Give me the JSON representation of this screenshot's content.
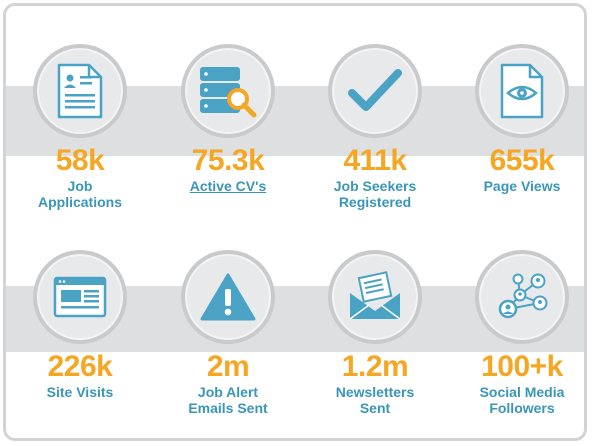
{
  "colors": {
    "accent_orange": "#f5a623",
    "label_blue": "#3a96b8",
    "icon_blue": "#4aa3c4",
    "band_gray": "#dedfe1"
  },
  "stats": [
    {
      "value": "58k",
      "label_lines": [
        "Job",
        "Applications"
      ],
      "icon": "document-icon"
    },
    {
      "value": "75.3k",
      "label_lines": [
        "Active CV's"
      ],
      "icon": "database-search-icon",
      "link": true
    },
    {
      "value": "411k",
      "label_lines": [
        "Job Seekers",
        "Registered"
      ],
      "icon": "checkmark-icon"
    },
    {
      "value": "655k",
      "label_lines": [
        "Page Views"
      ],
      "icon": "page-eye-icon"
    },
    {
      "value": "226k",
      "label_lines": [
        "Site Visits"
      ],
      "icon": "browser-window-icon"
    },
    {
      "value": "2m",
      "label_lines": [
        "Job Alert",
        "Emails Sent"
      ],
      "icon": "warning-triangle-icon"
    },
    {
      "value": "1.2m",
      "label_lines": [
        "Newsletters",
        "Sent"
      ],
      "icon": "newsletter-envelope-icon"
    },
    {
      "value": "100+k",
      "label_lines": [
        "Social Media",
        "Followers"
      ],
      "icon": "social-network-icon"
    }
  ]
}
